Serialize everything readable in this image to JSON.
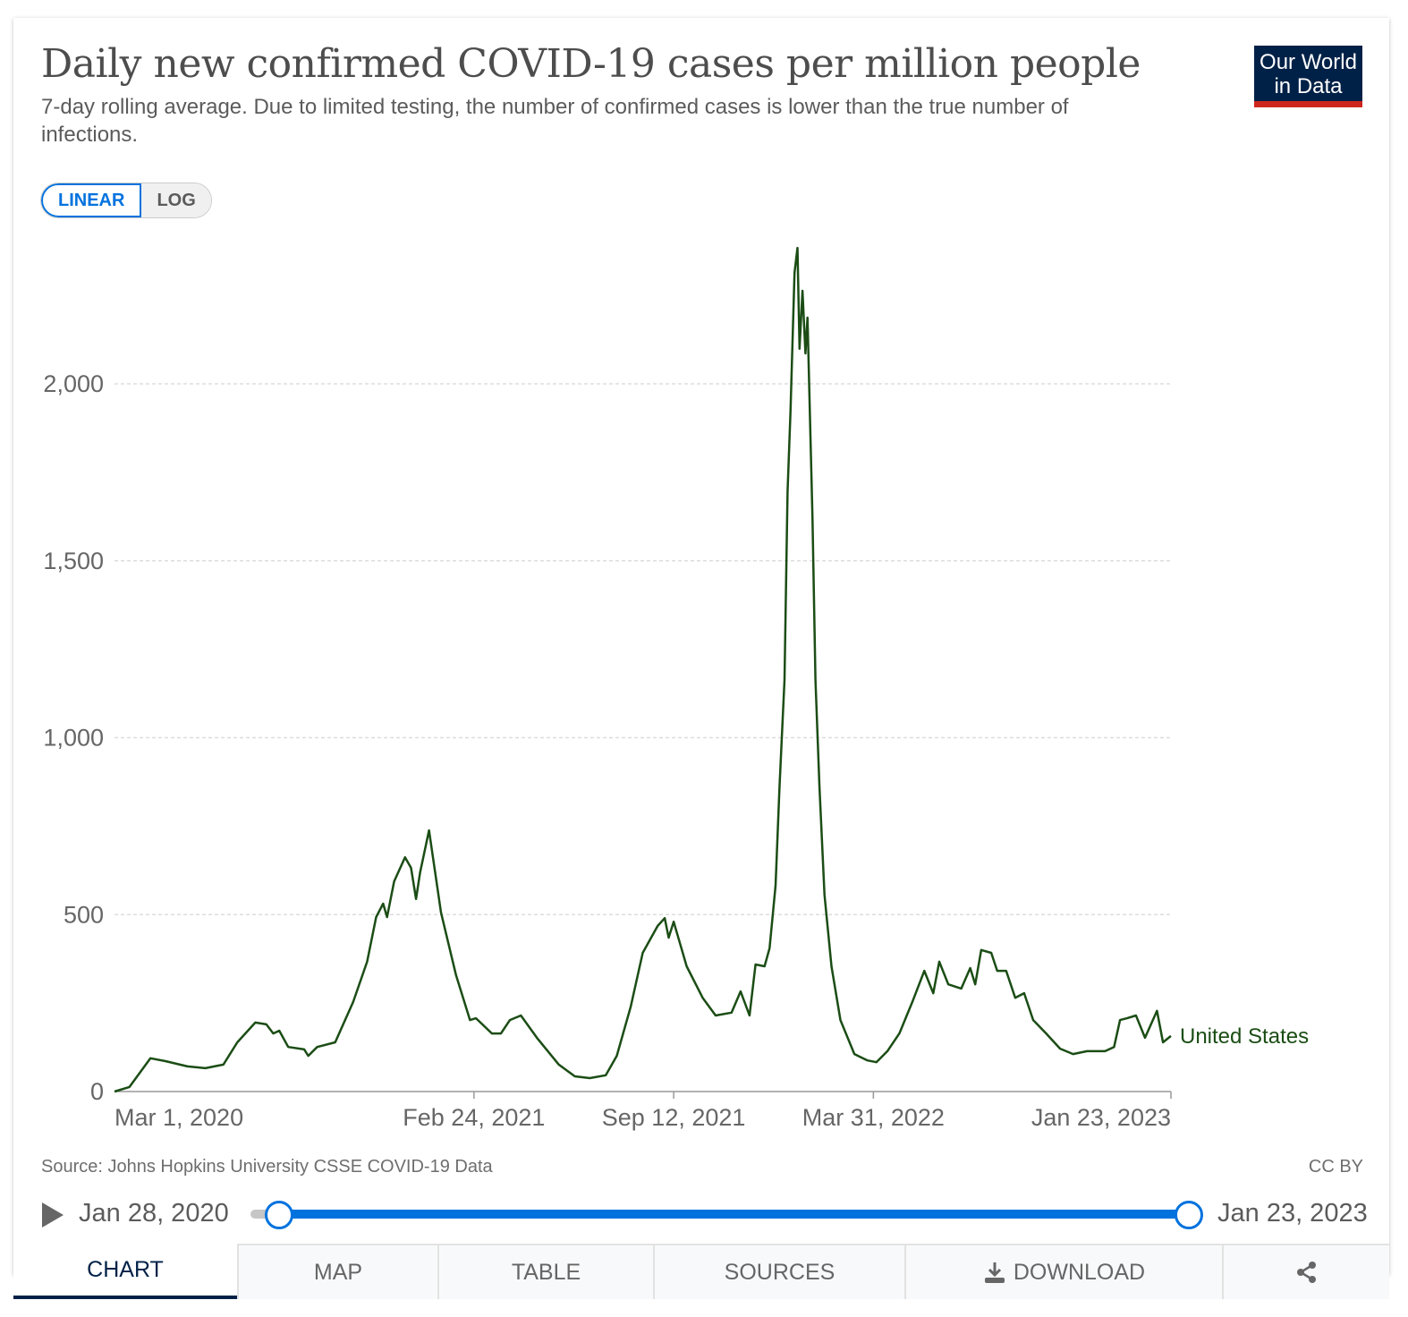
{
  "header": {
    "title": "Daily new confirmed COVID-19 cases per million people",
    "subtitle": "7-day rolling average. Due to limited testing, the number of confirmed cases is lower than the true number of infections.",
    "logo": "Our World in Data",
    "logo_line1": "Our World",
    "logo_line2": "in Data"
  },
  "scale_toggle": {
    "linear": "LINEAR",
    "log": "LOG",
    "selected": "LINEAR"
  },
  "footer": {
    "source": "Source: Johns Hopkins University CSSE COVID-19 Data",
    "license": "CC BY"
  },
  "timeline": {
    "start": "Jan 28, 2020",
    "end": "Jan 23, 2023",
    "play_icon": "play-icon"
  },
  "tabs": [
    {
      "label": "CHART"
    },
    {
      "label": "MAP"
    },
    {
      "label": "TABLE"
    },
    {
      "label": "SOURCES"
    },
    {
      "label": "DOWNLOAD",
      "icon": "download-icon"
    },
    {
      "label": "",
      "icon": "share-icon"
    }
  ],
  "colors": {
    "line": "#1b4d15",
    "accent": "#0072de",
    "logo_bg": "#002147",
    "logo_bar": "#ce261e"
  },
  "chart_data": {
    "type": "line",
    "title": "Daily new confirmed COVID-19 cases per million people",
    "xlim": [
      "2020-03-01",
      "2023-01-23"
    ],
    "ylim": [
      0,
      2400
    ],
    "grid": "horizontal dashed",
    "yticks": [
      {
        "v": 0,
        "label": "0"
      },
      {
        "v": 500,
        "label": "500"
      },
      {
        "v": 1000,
        "label": "1,000"
      },
      {
        "v": 1500,
        "label": "1,500"
      },
      {
        "v": 2000,
        "label": "2,000"
      }
    ],
    "xticks": [
      {
        "d": "2020-03-01",
        "label": "Mar 1, 2020"
      },
      {
        "d": "2021-02-24",
        "label": "Feb 24, 2021"
      },
      {
        "d": "2021-09-12",
        "label": "Sep 12, 2021"
      },
      {
        "d": "2022-03-31",
        "label": "Mar 31, 2022"
      },
      {
        "d": "2023-01-23",
        "label": "Jan 23, 2023"
      }
    ],
    "series": [
      {
        "name": "United States",
        "points": [
          [
            "2020-03-01",
            0
          ],
          [
            "2020-03-16",
            13
          ],
          [
            "2020-04-06",
            94
          ],
          [
            "2020-04-21",
            86
          ],
          [
            "2020-05-13",
            71
          ],
          [
            "2020-05-31",
            66
          ],
          [
            "2020-06-18",
            76
          ],
          [
            "2020-07-02",
            139
          ],
          [
            "2020-07-20",
            195
          ],
          [
            "2020-07-31",
            190
          ],
          [
            "2020-08-07",
            164
          ],
          [
            "2020-08-13",
            172
          ],
          [
            "2020-08-22",
            126
          ],
          [
            "2020-09-07",
            119
          ],
          [
            "2020-09-11",
            101
          ],
          [
            "2020-09-20",
            126
          ],
          [
            "2020-10-08",
            139
          ],
          [
            "2020-10-26",
            253
          ],
          [
            "2020-11-09",
            367
          ],
          [
            "2020-11-18",
            493
          ],
          [
            "2020-11-25",
            531
          ],
          [
            "2020-11-29",
            493
          ],
          [
            "2020-12-06",
            594
          ],
          [
            "2020-12-17",
            662
          ],
          [
            "2020-12-23",
            632
          ],
          [
            "2020-12-28",
            544
          ],
          [
            "2021-01-01",
            619
          ],
          [
            "2021-01-10",
            738
          ],
          [
            "2021-01-22",
            506
          ],
          [
            "2021-02-06",
            329
          ],
          [
            "2021-02-20",
            202
          ],
          [
            "2021-02-26",
            207
          ],
          [
            "2021-03-14",
            164
          ],
          [
            "2021-03-23",
            164
          ],
          [
            "2021-04-01",
            202
          ],
          [
            "2021-04-12",
            215
          ],
          [
            "2021-04-28",
            152
          ],
          [
            "2021-05-20",
            76
          ],
          [
            "2021-06-05",
            43
          ],
          [
            "2021-06-20",
            38
          ],
          [
            "2021-07-06",
            46
          ],
          [
            "2021-07-17",
            101
          ],
          [
            "2021-07-31",
            240
          ],
          [
            "2021-08-12",
            392
          ],
          [
            "2021-08-27",
            468
          ],
          [
            "2021-09-03",
            490
          ],
          [
            "2021-09-07",
            435
          ],
          [
            "2021-09-12",
            480
          ],
          [
            "2021-09-25",
            354
          ],
          [
            "2021-10-11",
            265
          ],
          [
            "2021-10-24",
            215
          ],
          [
            "2021-11-09",
            223
          ],
          [
            "2021-11-18",
            283
          ],
          [
            "2021-11-27",
            215
          ],
          [
            "2021-12-03",
            359
          ],
          [
            "2021-12-12",
            354
          ],
          [
            "2021-12-17",
            405
          ],
          [
            "2021-12-23",
            582
          ],
          [
            "2021-12-27",
            860
          ],
          [
            "2022-01-01",
            1163
          ],
          [
            "2022-01-04",
            1694
          ],
          [
            "2022-01-07",
            1922
          ],
          [
            "2022-01-11",
            2314
          ],
          [
            "2022-01-14",
            2384
          ],
          [
            "2022-01-16",
            2099
          ],
          [
            "2022-01-19",
            2263
          ],
          [
            "2022-01-22",
            2086
          ],
          [
            "2022-01-24",
            2187
          ],
          [
            "2022-01-29",
            1618
          ],
          [
            "2022-02-01",
            1163
          ],
          [
            "2022-02-05",
            860
          ],
          [
            "2022-02-10",
            556
          ],
          [
            "2022-02-17",
            354
          ],
          [
            "2022-02-26",
            202
          ],
          [
            "2022-03-12",
            106
          ],
          [
            "2022-03-25",
            88
          ],
          [
            "2022-04-03",
            83
          ],
          [
            "2022-04-14",
            114
          ],
          [
            "2022-04-26",
            164
          ],
          [
            "2022-05-09",
            253
          ],
          [
            "2022-05-21",
            341
          ],
          [
            "2022-05-30",
            278
          ],
          [
            "2022-06-05",
            367
          ],
          [
            "2022-06-14",
            303
          ],
          [
            "2022-06-27",
            291
          ],
          [
            "2022-07-06",
            349
          ],
          [
            "2022-07-11",
            303
          ],
          [
            "2022-07-17",
            400
          ],
          [
            "2022-07-27",
            392
          ],
          [
            "2022-08-02",
            341
          ],
          [
            "2022-08-11",
            341
          ],
          [
            "2022-08-20",
            265
          ],
          [
            "2022-08-29",
            278
          ],
          [
            "2022-09-07",
            202
          ],
          [
            "2022-09-20",
            164
          ],
          [
            "2022-10-04",
            121
          ],
          [
            "2022-10-17",
            106
          ],
          [
            "2022-10-31",
            114
          ],
          [
            "2022-11-18",
            114
          ],
          [
            "2022-11-27",
            126
          ],
          [
            "2022-12-03",
            202
          ],
          [
            "2022-12-10",
            207
          ],
          [
            "2022-12-19",
            215
          ],
          [
            "2022-12-28",
            152
          ],
          [
            "2023-01-09",
            228
          ],
          [
            "2023-01-15",
            139
          ],
          [
            "2023-01-23",
            157
          ]
        ]
      }
    ]
  }
}
